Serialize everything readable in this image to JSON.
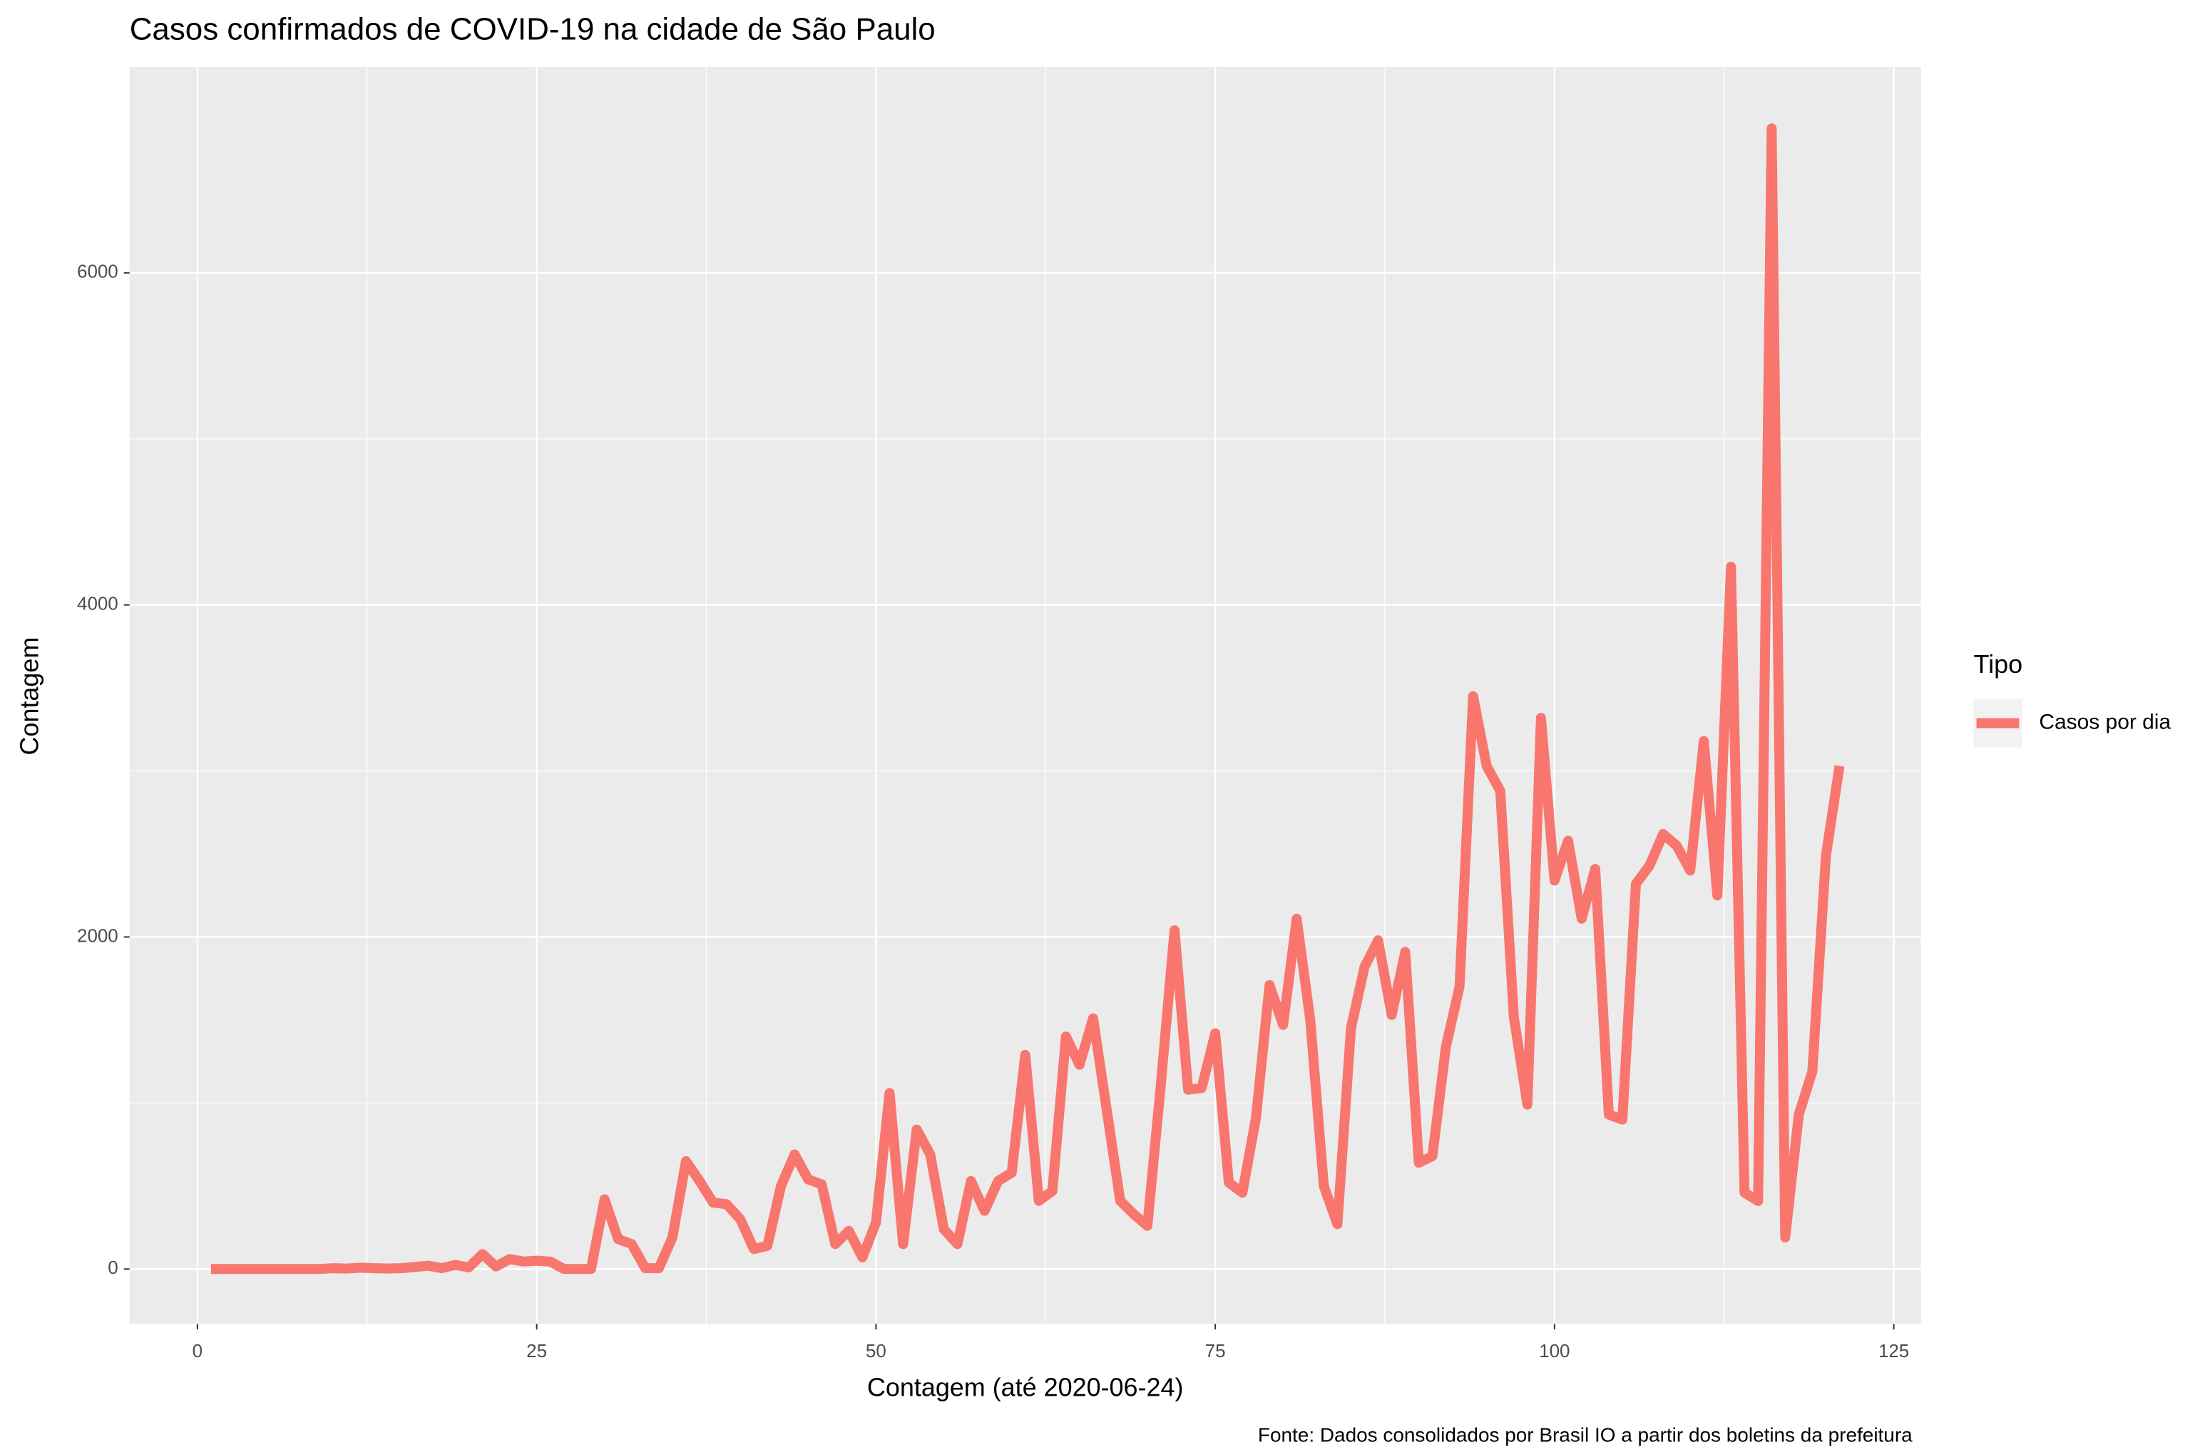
{
  "chart_data": {
    "type": "line",
    "title": "Casos confirmados de COVID-19 na cidade de São Paulo",
    "x_label": "Contagem (até 2020-06-24)",
    "y_label": "Contagem",
    "caption": "Fonte: Dados consolidados por Brasil IO a partir dos boletins da prefeitura",
    "legend_title": "Tipo",
    "legend": "right",
    "grid": true,
    "x": [
      1,
      2,
      3,
      4,
      5,
      6,
      7,
      8,
      9,
      10,
      11,
      12,
      13,
      14,
      15,
      16,
      17,
      18,
      19,
      20,
      21,
      22,
      23,
      24,
      25,
      26,
      27,
      28,
      29,
      30,
      31,
      32,
      33,
      34,
      35,
      36,
      37,
      38,
      39,
      40,
      41,
      42,
      43,
      44,
      45,
      46,
      47,
      48,
      49,
      50,
      51,
      52,
      53,
      54,
      55,
      56,
      57,
      58,
      59,
      60,
      61,
      62,
      63,
      64,
      65,
      66,
      67,
      68,
      69,
      70,
      71,
      72,
      73,
      74,
      75,
      76,
      77,
      78,
      79,
      80,
      81,
      82,
      83,
      84,
      85,
      86,
      87,
      88,
      89,
      90,
      91,
      92,
      93,
      94,
      95,
      96,
      97,
      98,
      99,
      100,
      101,
      102,
      103,
      104,
      105,
      106,
      107,
      108,
      109,
      110,
      111,
      112,
      113,
      114,
      115,
      116,
      117,
      118,
      119,
      120,
      121
    ],
    "series": [
      {
        "name": "Casos por dia",
        "color": "#F8766D",
        "values": [
          0,
          0,
          0,
          0,
          0,
          0,
          0,
          0,
          0,
          5,
          3,
          8,
          5,
          3,
          5,
          12,
          20,
          5,
          25,
          10,
          90,
          15,
          60,
          45,
          50,
          45,
          0,
          0,
          0,
          420,
          180,
          150,
          5,
          5,
          190,
          650,
          530,
          400,
          390,
          300,
          120,
          140,
          500,
          690,
          540,
          510,
          150,
          230,
          70,
          280,
          1060,
          150,
          840,
          690,
          240,
          150,
          530,
          350,
          530,
          580,
          1290,
          410,
          470,
          1400,
          1230,
          1510,
          960,
          410,
          330,
          260,
          1120,
          2040,
          1080,
          1090,
          1420,
          520,
          460,
          910,
          1710,
          1470,
          2110,
          1500,
          500,
          270,
          1450,
          1820,
          1980,
          1530,
          1910,
          640,
          680,
          1340,
          1700,
          3450,
          3030,
          2880,
          1520,
          990,
          3320,
          2340,
          2580,
          2110,
          2410,
          930,
          900,
          2320,
          2430,
          2620,
          2550,
          2400,
          3180,
          2250,
          4230,
          460,
          410,
          6870,
          190,
          930,
          1190,
          2490,
          3030
        ]
      }
    ],
    "xlim": [
      -5,
      127
    ],
    "ylim": [
      -330,
      7240
    ],
    "xticks": [
      0,
      25,
      50,
      75,
      100,
      125
    ],
    "yticks": [
      0,
      2000,
      4000,
      6000
    ],
    "xminorticks": [
      12.5,
      37.5,
      62.5,
      87.5,
      112.5
    ],
    "yminorticks": [
      1000,
      3000,
      5000
    ]
  }
}
